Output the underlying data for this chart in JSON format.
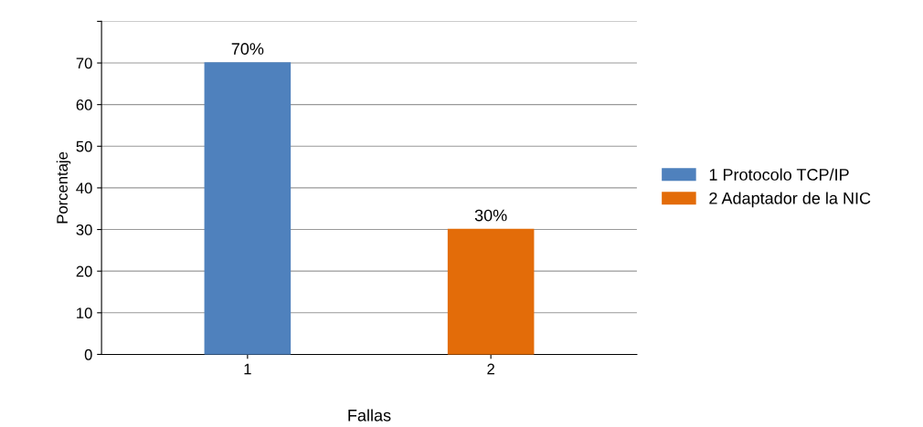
{
  "chart_data": {
    "type": "bar",
    "xlabel": "Fallas",
    "ylabel": "Porcentaje",
    "categories": [
      "1",
      "2"
    ],
    "series": [
      {
        "name": "1 Protocolo TCP/IP",
        "color": "#4f81bd",
        "values": [
          70,
          null
        ],
        "value_labels": [
          "70%",
          null
        ]
      },
      {
        "name": "2 Adaptador de la NIC",
        "color": "#e36c09",
        "values": [
          null,
          30
        ],
        "value_labels": [
          null,
          "30%"
        ]
      }
    ],
    "ylim": [
      0,
      80
    ],
    "yticks": [
      0,
      10,
      20,
      30,
      40,
      50,
      60,
      70,
      {
        "value": 80,
        "label": null
      }
    ],
    "grid": "y",
    "legend": "right"
  }
}
